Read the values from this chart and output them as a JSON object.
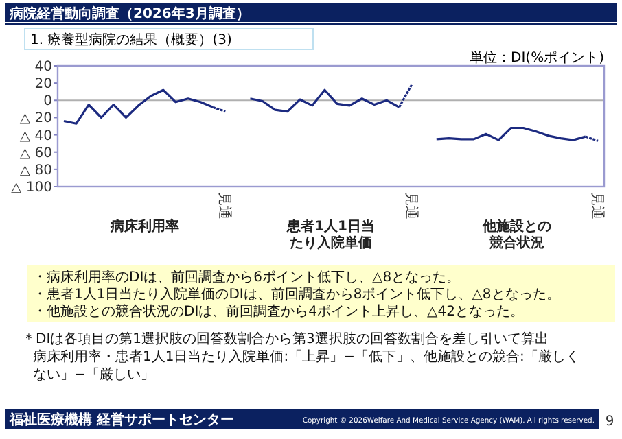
{
  "chart_data": {
    "type": "line",
    "title": "病院経営動向調査（2026年3月調査）",
    "subtitle": "1. 療養型病院の結果（概要）(3)",
    "ylabel": "単位：DI(%ポイント)",
    "categories": [
      null,
      null,
      null,
      null,
      null,
      null,
      null,
      null,
      null,
      null,
      null,
      null,
      null,
      "見通",
      null,
      null,
      null,
      null,
      null,
      null,
      null,
      null,
      null,
      null,
      null,
      null,
      null,
      null,
      "見通",
      null,
      null,
      null,
      null,
      null,
      null,
      null,
      null,
      null,
      null,
      null,
      null,
      null,
      null,
      "見通"
    ],
    "ylim": [
      -100,
      40
    ],
    "yticks": [
      40,
      20,
      0,
      {
        "value": -20,
        "label": "△ 20"
      },
      {
        "value": -40,
        "label": "△ 40"
      },
      {
        "value": -60,
        "label": "△ 60"
      },
      {
        "value": -80,
        "label": "△ 80"
      },
      {
        "value": -100,
        "label": "△ 100"
      }
    ],
    "ref_lines": [
      {
        "axis": "y",
        "value": 0,
        "color": "#b0b0b0"
      }
    ],
    "series": [
      {
        "color": "#1c2a80",
        "line_style": "solid",
        "values": [
          -24,
          -27,
          -5,
          -20,
          -5,
          -20,
          -6,
          5,
          12,
          -2,
          2,
          -2,
          -8,
          null,
          null,
          2,
          -1,
          -11,
          -13,
          1,
          -6,
          12,
          -4,
          -6,
          2,
          -5,
          0,
          -8,
          null,
          null,
          -45,
          -44,
          -45,
          -45,
          -39,
          -46,
          -32,
          -32,
          -36,
          -41,
          -44,
          -46,
          -42,
          null
        ]
      },
      {
        "color": "#1c2a80",
        "line_style": "dotted",
        "values": [
          null,
          null,
          null,
          null,
          null,
          null,
          null,
          null,
          null,
          null,
          null,
          null,
          -8,
          -13,
          null,
          null,
          null,
          null,
          null,
          null,
          null,
          null,
          null,
          null,
          null,
          null,
          null,
          -8,
          18,
          null,
          null,
          null,
          null,
          null,
          null,
          null,
          null,
          null,
          null,
          null,
          null,
          null,
          -42,
          -47
        ]
      }
    ],
    "annotations": [
      "病床利用率",
      "患者1人1日当たり入院単価",
      "他施設との競合状況",
      "・病床利用率のDIは、前回調査から6ポイント低下し、△8となった。",
      "・患者1人1日当たり入院単価のDIは、前回調査から8ポイント低下し、△8となった。",
      "・他施設との競合状況のDIは、前回調査から4ポイント上昇し、△42となった。",
      "＊DIは各項目の第1選択肢の回答数割合から第3選択肢の回答数割合を差し引いて算出",
      "病床利用率・患者1人1日当たり入院単価:「上昇」−「低下」、他施設との競合:「厳しくない」−「厳しい」",
      "福祉医療機構 経営サポートセンター",
      "Copyright © 2026Welfare And Medical Service Agency (WAM). All rights reserved.",
      "9"
    ]
  }
}
